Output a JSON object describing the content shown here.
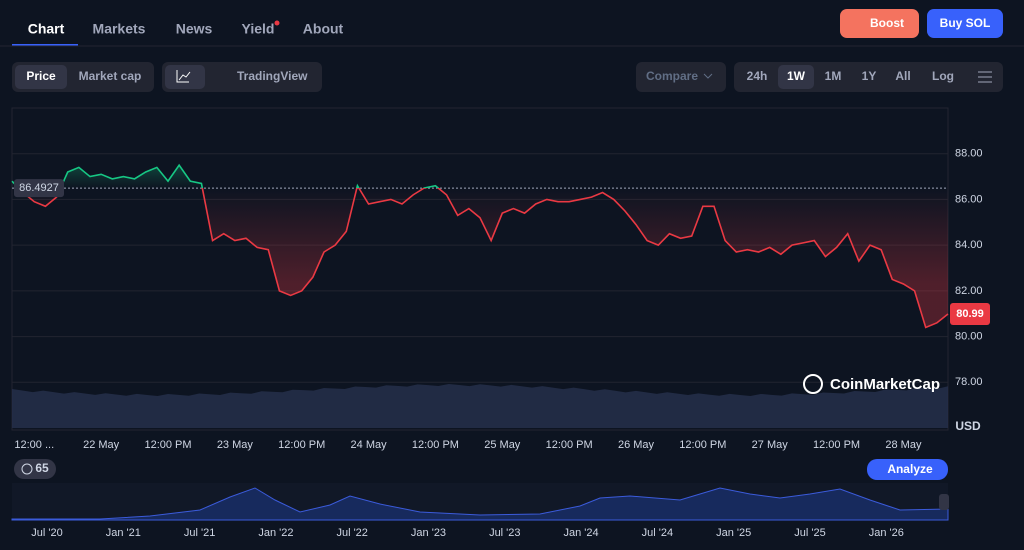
{
  "nav": {
    "tabs": [
      "Chart",
      "Markets",
      "News",
      "Yield",
      "About"
    ]
  },
  "buttons": {
    "boost": "Boost",
    "buy": "Buy SOL"
  },
  "toolbar": {
    "modes": [
      "Price",
      "Market cap"
    ],
    "tradingview": "TradingView",
    "compare": "Compare",
    "ranges": [
      "24h",
      "1W",
      "1M",
      "1Y",
      "All",
      "Log"
    ]
  },
  "chart_data": {
    "type": "line",
    "categories": [
      null,
      null,
      "12:00 ...",
      null,
      null,
      null,
      null,
      null,
      "22 May",
      null,
      null,
      null,
      null,
      null,
      "12:00 PM",
      null,
      null,
      null,
      null,
      null,
      "23 May",
      null,
      null,
      null,
      null,
      null,
      "12:00 PM",
      null,
      null,
      null,
      null,
      null,
      "24 May",
      null,
      null,
      null,
      null,
      null,
      "12:00 PM",
      null,
      null,
      null,
      null,
      null,
      "25 May",
      null,
      null,
      null,
      null,
      null,
      "12:00 PM",
      null,
      null,
      null,
      null,
      null,
      "26 May",
      null,
      null,
      null,
      null,
      null,
      "12:00 PM",
      null,
      null,
      null,
      null,
      null,
      "27 May",
      null,
      null,
      null,
      null,
      null,
      "12:00 PM",
      null,
      null,
      null,
      null,
      null,
      "28 May",
      null,
      null,
      null,
      null
    ],
    "values": [
      86.8,
      86.3,
      85.9,
      85.7,
      86.1,
      87.2,
      87.4,
      87.0,
      87.1,
      86.9,
      87.0,
      86.9,
      87.2,
      87.4,
      86.8,
      87.5,
      86.8,
      86.7,
      84.2,
      84.5,
      84.2,
      84.3,
      83.9,
      83.8,
      82.0,
      81.8,
      82.0,
      82.6,
      83.7,
      84.0,
      84.6,
      86.6,
      85.8,
      85.9,
      86.0,
      85.8,
      86.2,
      86.5,
      86.6,
      86.2,
      85.3,
      85.6,
      85.2,
      84.2,
      85.4,
      85.6,
      85.4,
      85.8,
      86.0,
      85.9,
      85.9,
      86.0,
      86.1,
      86.3,
      86.0,
      85.5,
      84.9,
      84.2,
      84.0,
      84.5,
      84.3,
      84.4,
      85.7,
      85.7,
      84.2,
      83.7,
      83.8,
      83.7,
      83.9,
      83.6,
      84.0,
      84.1,
      84.2,
      83.5,
      83.9,
      84.5,
      83.3,
      84.0,
      83.8,
      82.5,
      82.3,
      82.0,
      80.4,
      80.6,
      80.99
    ],
    "ylim": [
      76,
      90
    ],
    "yticks": [
      {
        "value": 78,
        "label": "78.00"
      },
      {
        "value": 80,
        "label": "80.00"
      },
      {
        "value": 82,
        "label": "82.00"
      },
      {
        "value": 84,
        "label": "84.00"
      },
      {
        "value": 86,
        "label": "86.00"
      },
      {
        "value": 88,
        "label": "88.00"
      }
    ],
    "reference": 86.4927,
    "unit": "USD",
    "up_color": "#16c784",
    "down_color": "#ea3943",
    "grid": true
  },
  "watermark": "CoinMarketCap",
  "history_badge": "65",
  "analyze": "Analyze",
  "navigator_labels": [
    "Jul '20",
    "Jan '21",
    "Jul '21",
    "Jan '22",
    "Jul '22",
    "Jan '23",
    "Jul '23",
    "Jan '24",
    "Jul '24",
    "Jan '25",
    "Jul '25",
    "Jan '26"
  ]
}
